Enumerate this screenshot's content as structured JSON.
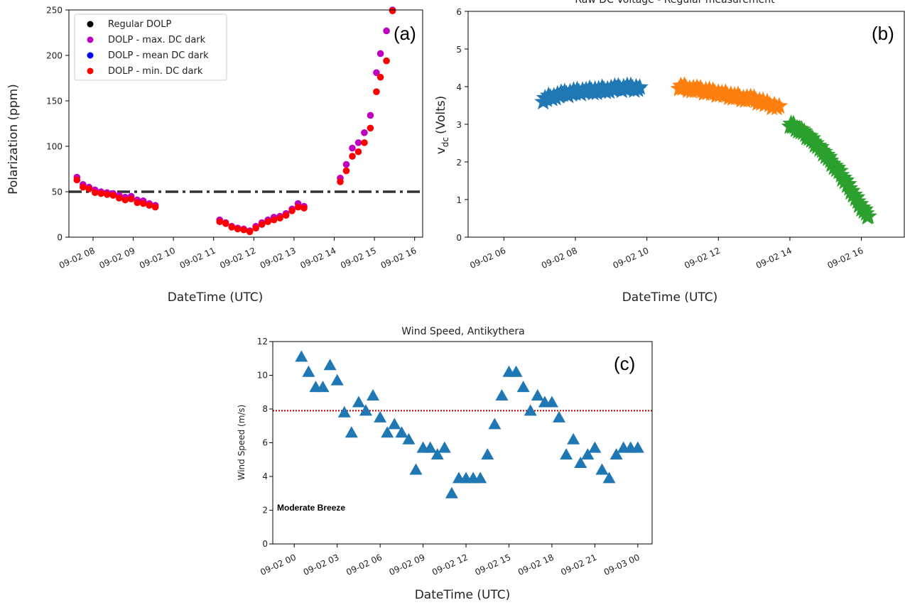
{
  "chart_data": [
    {
      "type": "scatter",
      "panel_label": "(a)",
      "title": "",
      "xlabel": "DateTime (UTC)",
      "ylabel": "Polarization  (ppm)",
      "x_unit": "hours since 09-02 00 UTC (date axis)",
      "xlim": [
        7.4,
        16.2
      ],
      "ylim": [
        0,
        250
      ],
      "xticks": [
        8,
        9,
        10,
        11,
        12,
        13,
        14,
        15,
        16
      ],
      "xtick_labels": [
        "09-02 08",
        "09-02 09",
        "09-02 10",
        "09-02 11",
        "09-02 12",
        "09-02 13",
        "09-02 14",
        "09-02 15",
        "09-02 16"
      ],
      "yticks": [
        0,
        50,
        100,
        150,
        200,
        250
      ],
      "ytick_labels": [
        "0",
        "50",
        "100",
        "150",
        "200",
        "250"
      ],
      "reference_line": {
        "y": 50,
        "style": "dash-dot",
        "color": "#333333"
      },
      "legend": {
        "placement": "top-left",
        "entries": [
          "Regular DOLP",
          "DOLP - max. DC dark",
          "DOLP - mean DC dark",
          "DOLP - min. DC dark"
        ]
      },
      "colors": {
        "Regular DOLP": "#000000",
        "DOLP - max. DC dark": "#bf00bf",
        "DOLP - mean DC dark": "#0000ff",
        "DOLP - min. DC dark": "#ff0000"
      },
      "series": [
        {
          "name": "DOLP - max. DC dark",
          "points": [
            [
              7.6,
              66
            ],
            [
              7.75,
              58
            ],
            [
              7.9,
              55
            ],
            [
              8.05,
              52
            ],
            [
              8.2,
              50
            ],
            [
              8.35,
              49
            ],
            [
              8.5,
              48
            ],
            [
              8.65,
              46
            ],
            [
              8.8,
              44
            ],
            [
              8.95,
              45
            ],
            [
              9.1,
              41
            ],
            [
              9.25,
              40
            ],
            [
              9.4,
              37
            ],
            [
              9.55,
              35
            ],
            [
              11.15,
              19
            ],
            [
              11.3,
              16
            ],
            [
              11.45,
              12
            ],
            [
              11.6,
              10
            ],
            [
              11.75,
              9
            ],
            [
              11.9,
              7
            ],
            [
              12.05,
              12
            ],
            [
              12.2,
              16
            ],
            [
              12.35,
              19
            ],
            [
              12.5,
              22
            ],
            [
              12.65,
              23
            ],
            [
              12.8,
              26
            ],
            [
              12.95,
              31
            ],
            [
              13.1,
              37
            ],
            [
              13.25,
              34
            ],
            [
              14.15,
              65
            ],
            [
              14.3,
              80
            ],
            [
              14.45,
              98
            ],
            [
              14.6,
              104
            ],
            [
              14.75,
              115
            ],
            [
              14.9,
              134
            ],
            [
              15.05,
              181
            ],
            [
              15.15,
              202
            ],
            [
              15.3,
              227
            ],
            [
              15.45,
              250
            ]
          ]
        },
        {
          "name": "DOLP - min. DC dark",
          "points": [
            [
              7.6,
              63
            ],
            [
              7.75,
              55
            ],
            [
              7.9,
              53
            ],
            [
              8.05,
              49
            ],
            [
              8.2,
              48
            ],
            [
              8.35,
              47
            ],
            [
              8.5,
              46
            ],
            [
              8.65,
              43
            ],
            [
              8.8,
              41
            ],
            [
              8.95,
              42
            ],
            [
              9.1,
              38
            ],
            [
              9.25,
              37
            ],
            [
              9.4,
              35
            ],
            [
              9.55,
              33
            ],
            [
              11.15,
              17
            ],
            [
              11.3,
              15
            ],
            [
              11.45,
              11
            ],
            [
              11.6,
              9
            ],
            [
              11.75,
              8
            ],
            [
              11.9,
              6
            ],
            [
              12.05,
              10
            ],
            [
              12.2,
              14
            ],
            [
              12.35,
              17
            ],
            [
              12.5,
              19
            ],
            [
              12.65,
              21
            ],
            [
              12.8,
              24
            ],
            [
              12.95,
              29
            ],
            [
              13.1,
              33
            ],
            [
              13.25,
              32
            ],
            [
              14.15,
              61
            ],
            [
              14.3,
              73
            ],
            [
              14.45,
              89
            ],
            [
              14.6,
              94
            ],
            [
              14.75,
              104
            ],
            [
              14.9,
              120
            ],
            [
              15.05,
              160
            ],
            [
              15.15,
              176
            ],
            [
              15.3,
              194
            ],
            [
              15.45,
              249
            ]
          ]
        }
      ]
    },
    {
      "type": "scatter",
      "panel_label": "(b)",
      "title": "Raw DC Voltage - Regular measurement",
      "xlabel": "DateTime (UTC)",
      "ylabel": "v",
      "ylabel_subscript": "dc",
      "ylabel_unit": "(Volts)",
      "x_unit": "hours since 09-02 00 UTC (date axis)",
      "xlim": [
        5.0,
        17.2
      ],
      "ylim": [
        0,
        6
      ],
      "xticks": [
        6,
        8,
        10,
        12,
        14,
        16
      ],
      "xtick_labels": [
        "09-02 06",
        "09-02 08",
        "09-02 10",
        "09-02 12",
        "09-02 14",
        "09-02 16"
      ],
      "yticks": [
        0,
        1,
        2,
        3,
        4,
        5,
        6
      ],
      "ytick_labels": [
        "0",
        "1",
        "2",
        "3",
        "4",
        "5",
        "6"
      ],
      "marker": "star",
      "series": [
        {
          "color": "#1f77b4",
          "points": [
            [
              7.1,
              3.65
            ],
            [
              7.4,
              3.75
            ],
            [
              7.7,
              3.8
            ],
            [
              8.0,
              3.85
            ],
            [
              8.3,
              3.88
            ],
            [
              8.6,
              3.9
            ],
            [
              8.9,
              3.93
            ],
            [
              9.2,
              3.95
            ],
            [
              9.5,
              3.97
            ],
            [
              9.8,
              3.95
            ]
          ]
        },
        {
          "color": "#ff7f0e",
          "points": [
            [
              10.9,
              4.0
            ],
            [
              11.2,
              3.95
            ],
            [
              11.5,
              3.9
            ],
            [
              11.8,
              3.85
            ],
            [
              12.1,
              3.8
            ],
            [
              12.4,
              3.75
            ],
            [
              12.7,
              3.7
            ],
            [
              13.0,
              3.65
            ],
            [
              13.3,
              3.55
            ],
            [
              13.7,
              3.45
            ]
          ]
        },
        {
          "color": "#2ca02c",
          "points": [
            [
              14.0,
              3.0
            ],
            [
              14.2,
              2.9
            ],
            [
              14.4,
              2.75
            ],
            [
              14.6,
              2.6
            ],
            [
              14.8,
              2.4
            ],
            [
              15.0,
              2.2
            ],
            [
              15.2,
              1.95
            ],
            [
              15.4,
              1.7
            ],
            [
              15.6,
              1.4
            ],
            [
              15.8,
              1.1
            ],
            [
              16.0,
              0.8
            ],
            [
              16.2,
              0.55
            ]
          ]
        }
      ]
    },
    {
      "type": "scatter",
      "panel_label": "(c)",
      "title": "Wind Speed, Antikythera",
      "xlabel": "DateTime (UTC)",
      "ylabel": "Wind Speed (m/s)",
      "x_unit": "hours since 09-02 00 UTC (date axis)",
      "xlim": [
        -1.5,
        25
      ],
      "ylim": [
        0,
        12
      ],
      "xticks": [
        0,
        3,
        6,
        9,
        12,
        15,
        18,
        21,
        24
      ],
      "xtick_labels": [
        "09-02 00",
        "09-02 03",
        "09-02 06",
        "09-02 09",
        "09-02 12",
        "09-02 15",
        "09-02 18",
        "09-02 21",
        "09-03 00"
      ],
      "yticks": [
        0,
        2,
        4,
        6,
        8,
        10,
        12
      ],
      "ytick_labels": [
        "0",
        "2",
        "4",
        "6",
        "8",
        "10",
        "12"
      ],
      "reference_line": {
        "y": 7.9,
        "style": "dotted",
        "color": "#b00000"
      },
      "annotation": "Moderate Breeze",
      "marker": "triangle",
      "color": "#1f77b4",
      "points": [
        [
          0.5,
          11.1
        ],
        [
          1.0,
          10.2
        ],
        [
          1.5,
          9.3
        ],
        [
          2.0,
          9.3
        ],
        [
          2.5,
          10.6
        ],
        [
          3.0,
          9.7
        ],
        [
          3.5,
          7.8
        ],
        [
          4.0,
          6.6
        ],
        [
          4.5,
          8.4
        ],
        [
          5.0,
          7.9
        ],
        [
          5.5,
          8.8
        ],
        [
          6.0,
          7.5
        ],
        [
          6.5,
          6.6
        ],
        [
          7.0,
          7.1
        ],
        [
          7.5,
          6.6
        ],
        [
          8.0,
          6.2
        ],
        [
          8.5,
          4.4
        ],
        [
          9.0,
          5.7
        ],
        [
          9.5,
          5.7
        ],
        [
          10.0,
          5.3
        ],
        [
          10.5,
          5.7
        ],
        [
          11.0,
          3.0
        ],
        [
          11.5,
          3.9
        ],
        [
          12.0,
          3.9
        ],
        [
          12.5,
          3.9
        ],
        [
          13.0,
          3.9
        ],
        [
          13.5,
          5.3
        ],
        [
          14.0,
          7.1
        ],
        [
          14.5,
          8.8
        ],
        [
          15.0,
          10.2
        ],
        [
          15.5,
          10.2
        ],
        [
          16.0,
          9.3
        ],
        [
          16.5,
          7.9
        ],
        [
          17.0,
          8.8
        ],
        [
          17.5,
          8.4
        ],
        [
          18.0,
          8.4
        ],
        [
          18.5,
          7.5
        ],
        [
          19.0,
          5.3
        ],
        [
          19.5,
          6.2
        ],
        [
          20.0,
          4.8
        ],
        [
          20.5,
          5.3
        ],
        [
          21.0,
          5.7
        ],
        [
          21.5,
          4.4
        ],
        [
          22.0,
          3.9
        ],
        [
          22.5,
          5.3
        ],
        [
          23.0,
          5.7
        ],
        [
          23.5,
          5.7
        ],
        [
          24.0,
          5.7
        ]
      ]
    }
  ]
}
